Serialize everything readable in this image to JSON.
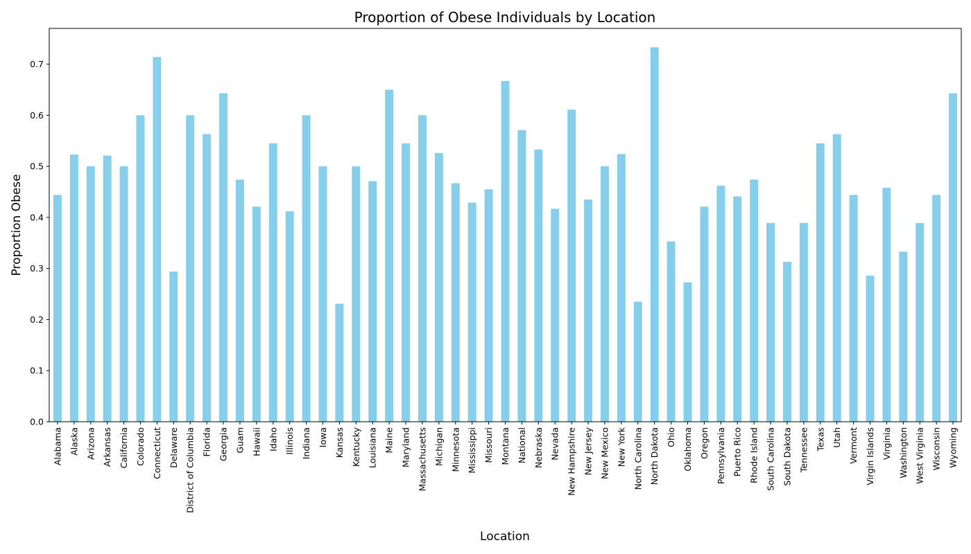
{
  "chart_data": {
    "type": "bar",
    "title": "Proportion of Obese Individuals by Location",
    "xlabel": "Location",
    "ylabel": "Proportion Obese",
    "ylim": [
      0,
      0.77
    ],
    "yticks": [
      "0.0",
      "0.1",
      "0.2",
      "0.3",
      "0.4",
      "0.5",
      "0.6",
      "0.7"
    ],
    "grid": false,
    "bar_color": "#87CEEB",
    "categories": [
      "Alabama",
      "Alaska",
      "Arizona",
      "Arkansas",
      "California",
      "Colorado",
      "Connecticut",
      "Delaware",
      "District of Columbia",
      "Florida",
      "Georgia",
      "Guam",
      "Hawaii",
      "Idaho",
      "Illinois",
      "Indiana",
      "Iowa",
      "Kansas",
      "Kentucky",
      "Louisiana",
      "Maine",
      "Maryland",
      "Massachusetts",
      "Michigan",
      "Minnesota",
      "Mississippi",
      "Missouri",
      "Montana",
      "National",
      "Nebraska",
      "Nevada",
      "New Hampshire",
      "New Jersey",
      "New Mexico",
      "New York",
      "North Carolina",
      "North Dakota",
      "Ohio",
      "Oklahoma",
      "Oregon",
      "Pennsylvania",
      "Puerto Rico",
      "Rhode Island",
      "South Carolina",
      "South Dakota",
      "Tennessee",
      "Texas",
      "Utah",
      "Vermont",
      "Virgin Islands",
      "Virginia",
      "Washington",
      "West Virginia",
      "Wisconsin",
      "Wyoming"
    ],
    "values": [
      0.444,
      0.523,
      0.5,
      0.521,
      0.5,
      0.6,
      0.714,
      0.294,
      0.6,
      0.563,
      0.643,
      0.474,
      0.421,
      0.545,
      0.412,
      0.6,
      0.5,
      0.231,
      0.5,
      0.471,
      0.65,
      0.545,
      0.6,
      0.526,
      0.467,
      0.429,
      0.455,
      0.667,
      0.571,
      0.533,
      0.417,
      0.611,
      0.435,
      0.5,
      0.524,
      0.235,
      0.733,
      0.353,
      0.273,
      0.421,
      0.462,
      0.441,
      0.474,
      0.389,
      0.313,
      0.389,
      0.545,
      0.563,
      0.444,
      0.286,
      0.458,
      0.333,
      0.389,
      0.444,
      0.643
    ]
  }
}
